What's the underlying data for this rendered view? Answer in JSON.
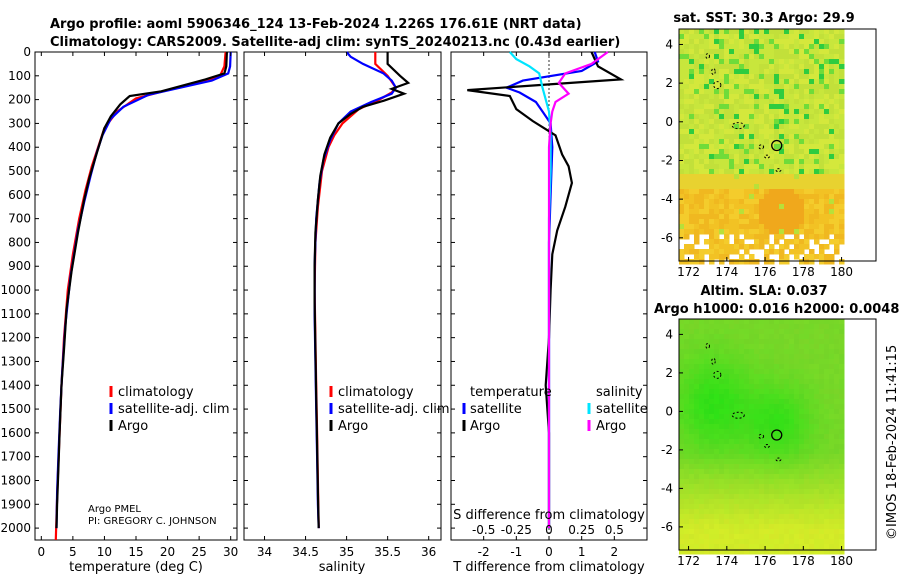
{
  "header": {
    "line1": "Argo profile: aoml 5906346_124 13-Feb-2024 1.226S 176.61E (NRT data)",
    "line2": "Climatology: CARS2009. Satellite-adj clim: synTS_20240213.nc (0.43d earlier)"
  },
  "pi": {
    "line1": "Argo PMEL",
    "line2": "PI: GREGORY C. JOHNSON"
  },
  "stamp": "©IMOS 18-Feb-2024 11:41:15",
  "colors": {
    "climatology": "#ff0000",
    "satellite": "#0000ff",
    "argo": "#000000",
    "sat_salinity": "#00e5ff",
    "argo_salinity": "#ff00ff"
  },
  "chart_data": [
    {
      "id": "temperature",
      "type": "line",
      "xlabel": "temperature (deg C)",
      "ylabel": "",
      "xlim": [
        -1,
        31
      ],
      "ylim": [
        2050,
        0
      ],
      "xticks": [
        0,
        5,
        10,
        15,
        20,
        25,
        30
      ],
      "yticks": [
        0,
        100,
        200,
        300,
        400,
        500,
        600,
        700,
        800,
        900,
        1000,
        1100,
        1200,
        1300,
        1400,
        1500,
        1600,
        1700,
        1800,
        1900,
        2000
      ],
      "legend": [
        "climatology",
        "satellite-adj. clim",
        "Argo"
      ],
      "series": [
        {
          "name": "climatology",
          "color": "#ff0000",
          "points": [
            [
              29.2,
              0
            ],
            [
              29.0,
              60
            ],
            [
              28.3,
              100
            ],
            [
              25,
              130
            ],
            [
              20,
              160
            ],
            [
              15,
              195
            ],
            [
              12,
              250
            ],
            [
              10,
              320
            ],
            [
              9,
              400
            ],
            [
              8,
              480
            ],
            [
              7,
              580
            ],
            [
              6,
              700
            ],
            [
              5,
              850
            ],
            [
              4.2,
              1000
            ],
            [
              3.6,
              1200
            ],
            [
              3.2,
              1400
            ],
            [
              2.9,
              1600
            ],
            [
              2.6,
              1800
            ],
            [
              2.4,
              1950
            ],
            [
              2.3,
              2050
            ]
          ]
        },
        {
          "name": "satellite-adj. clim",
          "color": "#0000ff",
          "points": [
            [
              30,
              0
            ],
            [
              29.9,
              60
            ],
            [
              29.6,
              90
            ],
            [
              27,
              120
            ],
            [
              22,
              150
            ],
            [
              17,
              180
            ],
            [
              13,
              230
            ],
            [
              11,
              280
            ],
            [
              9.7,
              350
            ],
            [
              8.8,
              420
            ],
            [
              7.8,
              520
            ],
            [
              6.8,
              630
            ],
            [
              5.8,
              750
            ],
            [
              4.6,
              950
            ],
            [
              3.8,
              1150
            ],
            [
              3.3,
              1350
            ],
            [
              3.0,
              1500
            ],
            [
              2.7,
              1700
            ],
            [
              2.5,
              1850
            ],
            [
              2.4,
              2000
            ]
          ]
        },
        {
          "name": "Argo",
          "color": "#000000",
          "points": [
            [
              29.4,
              0
            ],
            [
              29.3,
              60
            ],
            [
              29.0,
              90
            ],
            [
              26,
              115
            ],
            [
              19,
              165
            ],
            [
              14,
              185
            ],
            [
              12.5,
              220
            ],
            [
              11,
              270
            ],
            [
              10,
              320
            ],
            [
              9.3,
              380
            ],
            [
              8.5,
              450
            ],
            [
              7.6,
              530
            ],
            [
              6.8,
              620
            ],
            [
              5.8,
              760
            ],
            [
              4.8,
              920
            ],
            [
              4,
              1080
            ],
            [
              3.6,
              1250
            ],
            [
              3.2,
              1400
            ],
            [
              2.9,
              1600
            ],
            [
              2.7,
              1750
            ],
            [
              2.5,
              1900
            ],
            [
              2.4,
              2000
            ]
          ]
        }
      ]
    },
    {
      "id": "salinity",
      "type": "line",
      "xlabel": "salinity",
      "xlim": [
        33.75,
        36.15
      ],
      "ylim": [
        2050,
        0
      ],
      "xticks": [
        34,
        34.5,
        35,
        35.5,
        36
      ],
      "legend": [
        "climatology",
        "satellite-adj. clim",
        "Argo"
      ],
      "series": [
        {
          "name": "climatology",
          "color": "#ff0000",
          "points": [
            [
              35.35,
              0
            ],
            [
              35.35,
              50
            ],
            [
              35.5,
              100
            ],
            [
              35.6,
              150
            ],
            [
              35.55,
              170
            ],
            [
              35.4,
              200
            ],
            [
              35.15,
              240
            ],
            [
              34.95,
              300
            ],
            [
              34.85,
              350
            ],
            [
              34.78,
              400
            ],
            [
              34.7,
              500
            ],
            [
              34.65,
              650
            ],
            [
              34.62,
              800
            ],
            [
              34.61,
              1000
            ],
            [
              34.62,
              1200
            ],
            [
              34.63,
              1400
            ],
            [
              34.64,
              1600
            ],
            [
              34.65,
              1800
            ],
            [
              34.66,
              2000
            ]
          ]
        },
        {
          "name": "satellite-adj. clim",
          "color": "#0000ff",
          "points": [
            [
              35.0,
              0
            ],
            [
              35.05,
              20
            ],
            [
              35.2,
              50
            ],
            [
              35.45,
              90
            ],
            [
              35.55,
              120
            ],
            [
              35.6,
              150
            ],
            [
              35.55,
              175
            ],
            [
              35.3,
              210
            ],
            [
              35.05,
              250
            ],
            [
              34.9,
              300
            ],
            [
              34.8,
              370
            ],
            [
              34.72,
              450
            ],
            [
              34.67,
              550
            ],
            [
              34.63,
              700
            ],
            [
              34.61,
              900
            ],
            [
              34.61,
              1100
            ],
            [
              34.62,
              1300
            ],
            [
              34.63,
              1500
            ],
            [
              34.64,
              1700
            ],
            [
              34.65,
              1900
            ],
            [
              34.66,
              2000
            ]
          ]
        },
        {
          "name": "Argo",
          "color": "#000000",
          "points": [
            [
              35.5,
              0
            ],
            [
              35.5,
              50
            ],
            [
              35.65,
              100
            ],
            [
              35.75,
              130
            ],
            [
              35.55,
              155
            ],
            [
              35.7,
              175
            ],
            [
              35.45,
              205
            ],
            [
              35.2,
              230
            ],
            [
              35.05,
              260
            ],
            [
              34.9,
              300
            ],
            [
              34.8,
              360
            ],
            [
              34.73,
              430
            ],
            [
              34.68,
              520
            ],
            [
              34.65,
              620
            ],
            [
              34.62,
              760
            ],
            [
              34.61,
              900
            ],
            [
              34.61,
              1050
            ],
            [
              34.62,
              1250
            ],
            [
              34.63,
              1450
            ],
            [
              34.64,
              1650
            ],
            [
              34.65,
              1850
            ],
            [
              34.66,
              2000
            ]
          ]
        }
      ]
    },
    {
      "id": "difference",
      "type": "line",
      "xlabel": "T difference from climatology",
      "top_label": "S difference from climatology",
      "xlim": [
        -3,
        3
      ],
      "ylim": [
        2050,
        0
      ],
      "xticks": [
        -2,
        -1,
        0,
        1,
        2
      ],
      "xticklabels_s": [
        "-0.5",
        "-0.25",
        "0",
        "0.25",
        "0.5"
      ],
      "legend_temperature": {
        "heading": "temperature",
        "items": [
          "satellite",
          "Argo"
        ]
      },
      "legend_salinity": {
        "heading": "salinity",
        "items": [
          "satellite",
          "Argo"
        ]
      },
      "series": [
        {
          "name": "temperature satellite",
          "color": "#0000ff",
          "points": [
            [
              1.4,
              0
            ],
            [
              1.5,
              40
            ],
            [
              1.0,
              80
            ],
            [
              -0.8,
              120
            ],
            [
              -1.3,
              150
            ],
            [
              -0.9,
              170
            ],
            [
              -0.4,
              210
            ],
            [
              -0.2,
              250
            ],
            [
              0.05,
              300
            ],
            [
              0.1,
              400
            ],
            [
              0.05,
              600
            ],
            [
              0,
              800
            ],
            [
              0,
              1000
            ],
            [
              0,
              1300
            ],
            [
              0,
              1600
            ],
            [
              0,
              1800
            ],
            [
              0,
              2000
            ]
          ]
        },
        {
          "name": "temperature Argo",
          "color": "#000000",
          "points": [
            [
              1.3,
              0
            ],
            [
              1.5,
              60
            ],
            [
              2.2,
              115
            ],
            [
              -2.5,
              160
            ],
            [
              -1.2,
              185
            ],
            [
              -1.0,
              240
            ],
            [
              -0.5,
              290
            ],
            [
              0.2,
              350
            ],
            [
              0.4,
              430
            ],
            [
              0.6,
              480
            ],
            [
              0.7,
              550
            ],
            [
              0.5,
              650
            ],
            [
              0.25,
              750
            ],
            [
              0.1,
              850
            ],
            [
              0.05,
              1000
            ],
            [
              0,
              1200
            ],
            [
              -0.1,
              1400
            ],
            [
              0,
              1600
            ],
            [
              0,
              1800
            ],
            [
              0,
              2000
            ]
          ]
        },
        {
          "name": "salinity satellite",
          "color": "#00e5ff",
          "points": [
            [
              -1.2,
              0
            ],
            [
              -1.0,
              30
            ],
            [
              -0.6,
              60
            ],
            [
              -0.3,
              90
            ],
            [
              -0.2,
              150
            ],
            [
              0,
              250
            ],
            [
              0.05,
              350
            ],
            [
              0.05,
              500
            ],
            [
              0,
              700
            ],
            [
              0,
              1000
            ],
            [
              0,
              1300
            ],
            [
              0,
              1600
            ],
            [
              0,
              2000
            ]
          ]
        },
        {
          "name": "salinity Argo",
          "color": "#ff00ff",
          "points": [
            [
              1.8,
              0
            ],
            [
              1.3,
              50
            ],
            [
              0.5,
              90
            ],
            [
              0.3,
              130
            ],
            [
              0.6,
              175
            ],
            [
              0.2,
              210
            ],
            [
              0.1,
              250
            ],
            [
              0.05,
              300
            ],
            [
              0,
              400
            ],
            [
              0,
              600
            ],
            [
              0,
              800
            ],
            [
              0,
              1000
            ],
            [
              0,
              1300
            ],
            [
              0,
              1600
            ],
            [
              0,
              2000
            ]
          ]
        }
      ]
    },
    {
      "id": "sst_map",
      "type": "heatmap",
      "title": "sat. SST: 30.3 Argo: 29.9",
      "xlim": [
        171.5,
        181.8
      ],
      "ylim": [
        -7.2,
        4.8
      ],
      "xticks": [
        172,
        174,
        176,
        178,
        180
      ],
      "yticks": [
        -6,
        -4,
        -2,
        0,
        2,
        4
      ],
      "marker": [
        176.61,
        -1.226
      ]
    },
    {
      "id": "sla_map",
      "type": "heatmap",
      "title": "Altim. SLA: 0.037",
      "subtitle": "Argo h1000: 0.016 h2000: 0.0048",
      "xlim": [
        171.5,
        181.8
      ],
      "ylim": [
        -7.2,
        4.8
      ],
      "xticks": [
        172,
        174,
        176,
        178,
        180
      ],
      "yticks": [
        -6,
        -4,
        -2,
        0,
        2,
        4
      ],
      "marker": [
        176.61,
        -1.226
      ]
    }
  ]
}
